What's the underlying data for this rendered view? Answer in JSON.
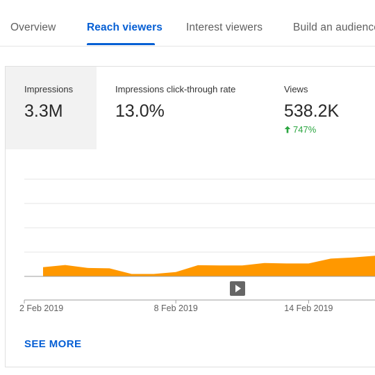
{
  "tabs": [
    {
      "label": "Overview",
      "active": false
    },
    {
      "label": "Reach viewers",
      "active": true
    },
    {
      "label": "Interest viewers",
      "active": false
    },
    {
      "label": "Build an audience",
      "active": false
    }
  ],
  "metrics": [
    {
      "label": "Impressions",
      "value": "3.3M",
      "selected": true
    },
    {
      "label": "Impressions click-through rate",
      "value": "13.0%",
      "selected": false
    },
    {
      "label": "Views",
      "value": "538.2K",
      "delta": "747%",
      "selected": false
    }
  ],
  "colors": {
    "accent": "#065fd4",
    "series": "#ff9800",
    "positive": "#2ba640"
  },
  "chart_data": {
    "type": "area",
    "x": [
      "2 Feb 2019",
      "3 Feb 2019",
      "4 Feb 2019",
      "5 Feb 2019",
      "6 Feb 2019",
      "7 Feb 2019",
      "8 Feb 2019",
      "9 Feb 2019",
      "10 Feb 2019",
      "11 Feb 2019",
      "12 Feb 2019",
      "13 Feb 2019",
      "14 Feb 2019",
      "15 Feb 2019",
      "16 Feb 2019",
      "17 Feb 2019"
    ],
    "values": [
      0.38,
      0.47,
      0.35,
      0.33,
      0.1,
      0.1,
      0.18,
      0.46,
      0.45,
      0.45,
      0.55,
      0.53,
      0.53,
      0.73,
      0.78,
      0.85
    ],
    "x_ticks": [
      "2 Feb 2019",
      "8 Feb 2019",
      "14 Feb 2019"
    ],
    "ylim": [
      0,
      4
    ],
    "grid": true,
    "series_name": "",
    "play_icon": "play-icon"
  },
  "see_more": "SEE MORE"
}
